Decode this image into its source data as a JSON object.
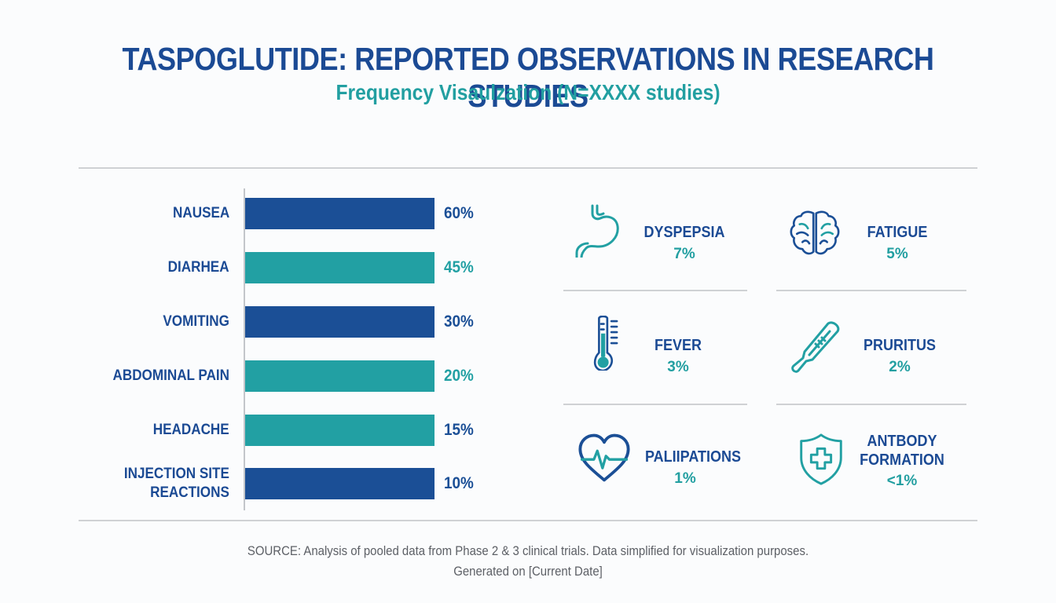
{
  "header": {
    "title": "TASPOGLUTIDE: REPORTED OBSERVATIONS IN RESEARCH STUDIES",
    "subtitle": "Frequency Visaulzation (N=XXXX studies)"
  },
  "colors": {
    "navy": "#1b4f96",
    "teal": "#22a0a3",
    "divider": "#cfd1d4",
    "axis": "#c3c6ca"
  },
  "chart_data": {
    "type": "bar",
    "orientation": "horizontal",
    "title": "TASPOGLUTIDE: REPORTED OBSERVATIONS IN RESEARCH STUDIES",
    "subtitle": "Frequency Visaulzation (N=XXXX studies)",
    "xlabel": "",
    "ylabel": "",
    "grid": false,
    "unit": "%",
    "categories": [
      "NAUSEA",
      "DIARHEA",
      "VOMITING",
      "ABDOMINAL PAIN",
      "HEADACHE",
      "INJECTION SITE REACTIONS"
    ],
    "label_lines": [
      [
        "NAUSEA"
      ],
      [
        "DIARHEA"
      ],
      [
        "VOMITING"
      ],
      [
        "ABDOMINAL PAIN"
      ],
      [
        "HEADACHE"
      ],
      [
        "INJECTION SITE",
        "REACTIONS"
      ]
    ],
    "values": [
      60,
      45,
      30,
      20,
      15,
      10
    ],
    "value_labels": [
      "60%",
      "45%",
      "30%",
      "20%",
      "15%",
      "10%"
    ],
    "bar_colors": [
      "navy",
      "teal",
      "navy",
      "teal",
      "teal",
      "navy"
    ],
    "value_label_colors": [
      "navy",
      "teal",
      "navy",
      "teal",
      "navy",
      "navy"
    ],
    "bars_drawn_equal_length": true
  },
  "other_observations": [
    {
      "name": "DYSPEPSIA",
      "name_lines": [
        "DYSPEPSIA"
      ],
      "value": 7,
      "label": "7%",
      "icon": "stomach-icon"
    },
    {
      "name": "FATIGUE",
      "name_lines": [
        "FATIGUE"
      ],
      "value": 5,
      "label": "5%",
      "icon": "brain-icon"
    },
    {
      "name": "FEVER",
      "name_lines": [
        "FEVER"
      ],
      "value": 3,
      "label": "3%",
      "icon": "thermometer-icon"
    },
    {
      "name": "PRURITUS",
      "name_lines": [
        "PRURITUS"
      ],
      "value": 2,
      "label": "2%",
      "icon": "clinical-thermometer-icon"
    },
    {
      "name": "PALIIPATIONS",
      "name_lines": [
        "PALIIPATIONS"
      ],
      "value": 1,
      "label": "1%",
      "icon": "heart-pulse-icon"
    },
    {
      "name": "ANTBODY FORMATION",
      "name_lines": [
        "ANTBODY",
        "FORMATION"
      ],
      "value": "<1",
      "label": "<1%",
      "icon": "shield-cross-icon"
    }
  ],
  "footer": {
    "source": "SOURCE: Analysis of pooled data from Phase 2 & 3 clinical trials. Data simplified for visualization purposes.",
    "generated": "Generated on [Current Date]"
  }
}
